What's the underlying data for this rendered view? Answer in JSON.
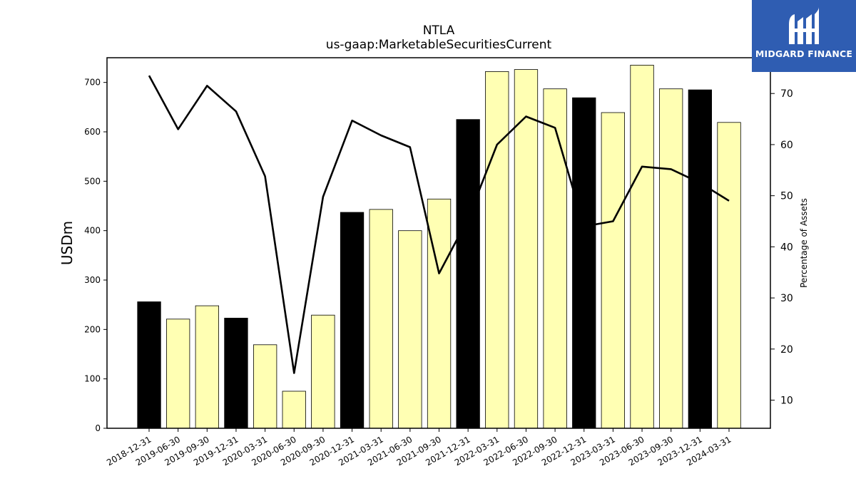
{
  "chart_data": {
    "type": "bar",
    "title": "NTLA",
    "subtitle": "us-gaap:MarketableSecuritiesCurrent",
    "ylabel": "USDm",
    "y2label": "Percentage of Assets",
    "ylim": [
      0,
      750
    ],
    "y2lim": [
      4.5,
      77
    ],
    "yticks": [
      0,
      100,
      200,
      300,
      400,
      500,
      600,
      700
    ],
    "y2ticks": [
      10,
      20,
      30,
      40,
      50,
      60,
      70
    ],
    "categories": [
      "2018-12-31",
      "2019-06-30",
      "2019-09-30",
      "2019-12-31",
      "2020-03-31",
      "2020-06-30",
      "2020-09-30",
      "2020-12-31",
      "2021-03-31",
      "2021-06-30",
      "2021-09-30",
      "2021-12-31",
      "2022-03-31",
      "2022-06-30",
      "2022-09-30",
      "2022-12-31",
      "2023-03-31",
      "2023-06-30",
      "2023-09-30",
      "2023-12-31",
      "2024-03-31"
    ],
    "series": [
      {
        "type": "bar",
        "values": [
          256,
          221,
          248,
          223,
          169,
          75,
          229,
          437,
          443,
          400,
          464,
          625,
          722,
          726,
          687,
          669,
          639,
          735,
          687,
          685,
          619
        ],
        "annual_flags": [
          true,
          false,
          false,
          true,
          false,
          false,
          false,
          true,
          false,
          false,
          false,
          true,
          false,
          false,
          false,
          true,
          false,
          false,
          false,
          true,
          false
        ],
        "annual_color": "#000000",
        "quarter_color": "#ffffb3"
      },
      {
        "type": "line",
        "axis": "right",
        "values": [
          73.5,
          63.0,
          71.5,
          66.5,
          53.8,
          15.3,
          49.8,
          64.7,
          61.8,
          59.5,
          34.8,
          45.5,
          60.0,
          65.5,
          63.3,
          44.0,
          45.0,
          55.7,
          55.2,
          52.5,
          49.0
        ],
        "color": "#000000"
      }
    ],
    "grid": false,
    "legend": "none"
  },
  "logo": {
    "text": "MIDGARD FINANCE",
    "icon": "midgard-logo-icon",
    "bg_color": "#2f5db2"
  }
}
